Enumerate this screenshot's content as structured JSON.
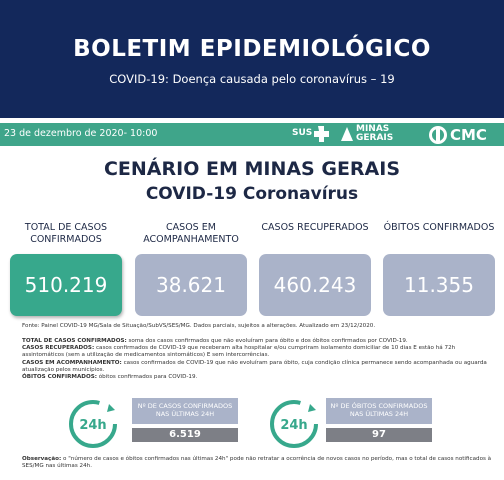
{
  "header": {
    "title": "BOLETIM EPIDEMIOLÓGICO",
    "subtitle": "COVID-19: Doença causada pelo coronavírus – 19"
  },
  "bar": {
    "date": "23 de dezembro de 2020- 10:00",
    "logos": [
      "SUS",
      "MINAS GERAIS",
      "CMC"
    ]
  },
  "scenario": {
    "title": "CENÁRIO EM MINAS GERAIS",
    "subtitle": "COVID-19 Coronavírus"
  },
  "cards": [
    {
      "label": "TOTAL DE CASOS CONFIRMADOS",
      "value": "510.219"
    },
    {
      "label": "CASOS EM ACOMPANHAMENTO",
      "value": "38.621"
    },
    {
      "label": "CASOS RECUPERADOS",
      "value": "460.243"
    },
    {
      "label": "ÓBITOS CONFIRMADOS",
      "value": "11.355"
    }
  ],
  "source": "Fonte: Painel COVID-19 MG/Sala de Situação/SubVS/SES/MG. Dados parciais, sujeitos a alterações. Atualizado em 23/12/2020.",
  "definitions": [
    {
      "term": "TOTAL DE CASOS CONFIRMADOS:",
      "text": "soma dos casos confirmados que não evoluíram para óbito e dos óbitos confirmados por COVID-19."
    },
    {
      "term": "CASOS RECUPERADOS:",
      "text": "casos confirmados de COVID-19 que receberam alta hospitalar e/ou cumpriram isolamento domiciliar de 10 dias E estão há 72h assintomáticos (sem a utilização de medicamentos sintomáticos) E sem intercorrências."
    },
    {
      "term": "CASOS EM ACOMPANHAMENTO:",
      "text": "casos confirmados de COVID-19 que não evoluíram para óbito, cuja condição clínica permanece sendo acompanhada ou aguarda atualização pelos municípios."
    },
    {
      "term": "ÓBITOS CONFIRMADOS:",
      "text": "óbitos confirmados para COVID-19."
    }
  ],
  "panels": [
    {
      "icon": "24h",
      "label": "Nº DE CASOS CONFIRMADOS NAS ÚLTIMAS 24H",
      "value": "6.519"
    },
    {
      "icon": "24h",
      "label": "Nº DE ÓBITOS CONFIRMADOS NAS ÚLTIMAS 24H",
      "value": "97"
    }
  ],
  "note": {
    "term": "Observação:",
    "text": "o \"número de casos e óbitos confirmados nas últimas 24h\" pode não retratar a ocorrência de novos casos no período, mas o total de casos notificados à SES/MG nas últimas 24h."
  }
}
